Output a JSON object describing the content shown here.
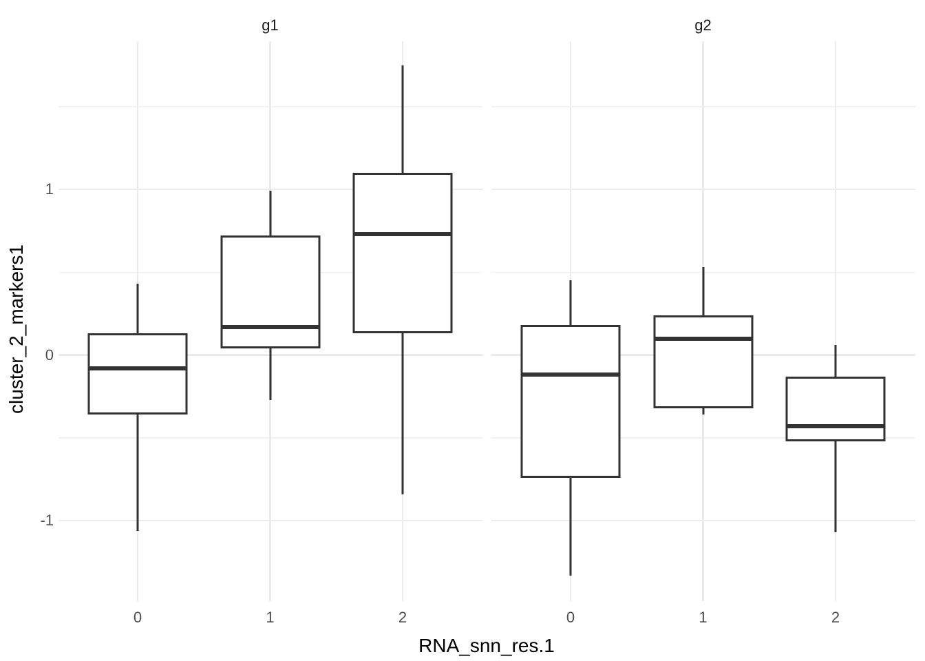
{
  "figure": {
    "background": "#FFFFFF",
    "box_color": "#333333",
    "grid_major_color": "#EBEBEB",
    "grid_minor_color": "#F1F1F1",
    "tick_label_color": "#4D4D4D",
    "strip_label_color": "#1A1A1A",
    "axis_title_color": "#000000"
  },
  "chart_data": {
    "type": "boxplot",
    "title": "",
    "xlabel": "RNA_snn_res.1",
    "ylabel": "cluster_2_markers1",
    "grid": true,
    "legend": false,
    "ylim": [
      -1.48,
      1.89
    ],
    "y_major_ticks": [
      {
        "value": 1,
        "label": "1"
      },
      {
        "value": 0,
        "label": "0"
      },
      {
        "value": -1,
        "label": "-1"
      }
    ],
    "y_minor_ticks": [
      1.5,
      0.5,
      -0.5
    ],
    "categories": [
      "0",
      "1",
      "2"
    ],
    "facets": [
      {
        "label": "g1",
        "boxes": [
          {
            "category": "0",
            "whisker_low": -1.06,
            "q1": -0.36,
            "median": -0.08,
            "q3": 0.13,
            "whisker_high": 0.43
          },
          {
            "category": "1",
            "whisker_low": -0.27,
            "q1": 0.04,
            "median": 0.17,
            "q3": 0.72,
            "whisker_high": 0.99
          },
          {
            "category": "2",
            "whisker_low": -0.84,
            "q1": 0.13,
            "median": 0.73,
            "q3": 1.1,
            "whisker_high": 1.75
          }
        ]
      },
      {
        "label": "g2",
        "boxes": [
          {
            "category": "0",
            "whisker_low": -1.33,
            "q1": -0.74,
            "median": -0.12,
            "q3": 0.18,
            "whisker_high": 0.45
          },
          {
            "category": "1",
            "whisker_low": -0.36,
            "q1": -0.32,
            "median": 0.1,
            "q3": 0.24,
            "whisker_high": 0.53
          },
          {
            "category": "2",
            "whisker_low": -1.07,
            "q1": -0.52,
            "median": -0.43,
            "q3": -0.13,
            "whisker_high": 0.06
          }
        ]
      }
    ]
  }
}
